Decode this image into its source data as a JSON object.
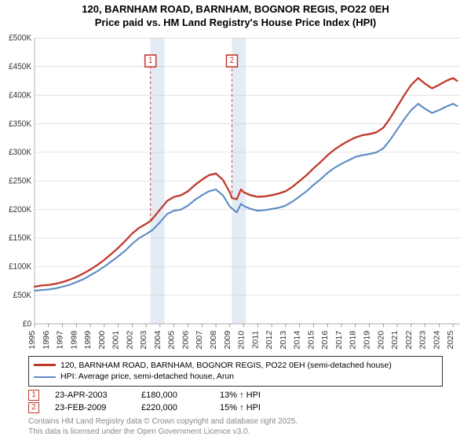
{
  "title": {
    "line1": "120, BARNHAM ROAD, BARNHAM, BOGNOR REGIS, PO22 0EH",
    "line2": "Price paid vs. HM Land Registry's House Price Index (HPI)",
    "fontsize": 13,
    "color": "#000000"
  },
  "chart": {
    "type": "line",
    "background_color": "#ffffff",
    "grid_color": "#cccccc",
    "axis_color": "#333333",
    "x": {
      "label_years": [
        1995,
        1996,
        1997,
        1998,
        1999,
        2000,
        2001,
        2002,
        2003,
        2004,
        2005,
        2006,
        2007,
        2008,
        2009,
        2010,
        2011,
        2012,
        2013,
        2014,
        2015,
        2016,
        2017,
        2018,
        2019,
        2020,
        2021,
        2022,
        2023,
        2024,
        2025
      ],
      "min": 1995,
      "max": 2025.5,
      "tick_fontsize": 10,
      "tick_rotation": -90
    },
    "y": {
      "min": 0,
      "max": 500000,
      "ticks": [
        0,
        50000,
        100000,
        150000,
        200000,
        250000,
        300000,
        350000,
        400000,
        450000,
        500000
      ],
      "tick_labels": [
        "£0",
        "£50K",
        "£100K",
        "£150K",
        "£200K",
        "£250K",
        "£300K",
        "£350K",
        "£400K",
        "£450K",
        "£500K"
      ],
      "tick_fontsize": 10
    },
    "highlight_bands": [
      {
        "x_start": 2003.31,
        "x_end": 2004.31
      },
      {
        "x_start": 2009.15,
        "x_end": 2010.15
      }
    ],
    "series": [
      {
        "name": "property",
        "label": "120, BARNHAM ROAD, BARNHAM, BOGNOR REGIS, PO22 0EH (semi-detached house)",
        "color": "#c0392b",
        "line_width": 2.2,
        "data": [
          [
            1995,
            65000
          ],
          [
            1995.5,
            67000
          ],
          [
            1996,
            68000
          ],
          [
            1996.5,
            70000
          ],
          [
            1997,
            73000
          ],
          [
            1997.5,
            77000
          ],
          [
            1998,
            82000
          ],
          [
            1998.5,
            88000
          ],
          [
            1999,
            95000
          ],
          [
            1999.5,
            103000
          ],
          [
            2000,
            112000
          ],
          [
            2000.5,
            122000
          ],
          [
            2001,
            133000
          ],
          [
            2001.5,
            145000
          ],
          [
            2002,
            158000
          ],
          [
            2002.5,
            168000
          ],
          [
            2003,
            175000
          ],
          [
            2003.31,
            180000
          ],
          [
            2003.5,
            185000
          ],
          [
            2004,
            200000
          ],
          [
            2004.5,
            215000
          ],
          [
            2005,
            222000
          ],
          [
            2005.5,
            225000
          ],
          [
            2006,
            232000
          ],
          [
            2006.5,
            243000
          ],
          [
            2007,
            252000
          ],
          [
            2007.5,
            260000
          ],
          [
            2008,
            263000
          ],
          [
            2008.5,
            252000
          ],
          [
            2009,
            230000
          ],
          [
            2009.15,
            220000
          ],
          [
            2009.5,
            218000
          ],
          [
            2009.8,
            235000
          ],
          [
            2010,
            230000
          ],
          [
            2010.5,
            225000
          ],
          [
            2011,
            222000
          ],
          [
            2011.5,
            223000
          ],
          [
            2012,
            225000
          ],
          [
            2012.5,
            228000
          ],
          [
            2013,
            232000
          ],
          [
            2013.5,
            240000
          ],
          [
            2014,
            250000
          ],
          [
            2014.5,
            260000
          ],
          [
            2015,
            272000
          ],
          [
            2015.5,
            283000
          ],
          [
            2016,
            295000
          ],
          [
            2016.5,
            305000
          ],
          [
            2017,
            313000
          ],
          [
            2017.5,
            320000
          ],
          [
            2018,
            326000
          ],
          [
            2018.5,
            330000
          ],
          [
            2019,
            332000
          ],
          [
            2019.5,
            335000
          ],
          [
            2020,
            343000
          ],
          [
            2020.5,
            360000
          ],
          [
            2021,
            380000
          ],
          [
            2021.5,
            400000
          ],
          [
            2022,
            418000
          ],
          [
            2022.5,
            430000
          ],
          [
            2023,
            420000
          ],
          [
            2023.5,
            412000
          ],
          [
            2024,
            418000
          ],
          [
            2024.5,
            425000
          ],
          [
            2025,
            430000
          ],
          [
            2025.3,
            425000
          ]
        ]
      },
      {
        "name": "hpi",
        "label": "HPI: Average price, semi-detached house, Arun",
        "color": "#5b8bc4",
        "line_width": 2,
        "data": [
          [
            1995,
            58000
          ],
          [
            1995.5,
            59000
          ],
          [
            1996,
            60000
          ],
          [
            1996.5,
            62000
          ],
          [
            1997,
            65000
          ],
          [
            1997.5,
            68000
          ],
          [
            1998,
            73000
          ],
          [
            1998.5,
            78000
          ],
          [
            1999,
            85000
          ],
          [
            1999.5,
            92000
          ],
          [
            2000,
            100000
          ],
          [
            2000.5,
            109000
          ],
          [
            2001,
            118000
          ],
          [
            2001.5,
            128000
          ],
          [
            2002,
            140000
          ],
          [
            2002.5,
            150000
          ],
          [
            2003,
            157000
          ],
          [
            2003.5,
            165000
          ],
          [
            2004,
            178000
          ],
          [
            2004.5,
            192000
          ],
          [
            2005,
            198000
          ],
          [
            2005.5,
            200000
          ],
          [
            2006,
            207000
          ],
          [
            2006.5,
            217000
          ],
          [
            2007,
            225000
          ],
          [
            2007.5,
            232000
          ],
          [
            2008,
            235000
          ],
          [
            2008.5,
            225000
          ],
          [
            2009,
            205000
          ],
          [
            2009.5,
            195000
          ],
          [
            2009.8,
            210000
          ],
          [
            2010,
            206000
          ],
          [
            2010.5,
            201000
          ],
          [
            2011,
            198000
          ],
          [
            2011.5,
            199000
          ],
          [
            2012,
            201000
          ],
          [
            2012.5,
            203000
          ],
          [
            2013,
            207000
          ],
          [
            2013.5,
            214000
          ],
          [
            2014,
            223000
          ],
          [
            2014.5,
            232000
          ],
          [
            2015,
            243000
          ],
          [
            2015.5,
            253000
          ],
          [
            2016,
            264000
          ],
          [
            2016.5,
            273000
          ],
          [
            2017,
            280000
          ],
          [
            2017.5,
            286000
          ],
          [
            2018,
            292000
          ],
          [
            2018.5,
            295000
          ],
          [
            2019,
            297000
          ],
          [
            2019.5,
            300000
          ],
          [
            2020,
            307000
          ],
          [
            2020.5,
            322000
          ],
          [
            2021,
            340000
          ],
          [
            2021.5,
            358000
          ],
          [
            2022,
            374000
          ],
          [
            2022.5,
            385000
          ],
          [
            2023,
            376000
          ],
          [
            2023.5,
            369000
          ],
          [
            2024,
            374000
          ],
          [
            2024.5,
            380000
          ],
          [
            2025,
            385000
          ],
          [
            2025.3,
            381000
          ]
        ]
      }
    ],
    "sale_markers": [
      {
        "num": "1",
        "x": 2003.31,
        "y_box": 460000,
        "dash_to_y": 180000
      },
      {
        "num": "2",
        "x": 2009.15,
        "y_box": 460000,
        "dash_to_y": 220000
      }
    ]
  },
  "legend": {
    "series1_color": "#c0392b",
    "series1_label": "120, BARNHAM ROAD, BARNHAM, BOGNOR REGIS, PO22 0EH (semi-detached house)",
    "series2_color": "#5b8bc4",
    "series2_label": "HPI: Average price, semi-detached house, Arun"
  },
  "sales": [
    {
      "num": "1",
      "date": "23-APR-2003",
      "price": "£180,000",
      "change": "13% ↑ HPI"
    },
    {
      "num": "2",
      "date": "23-FEB-2009",
      "price": "£220,000",
      "change": "15% ↑ HPI"
    }
  ],
  "footer": {
    "line1": "Contains HM Land Registry data © Crown copyright and database right 2025.",
    "line2": "This data is licensed under the Open Government Licence v3.0."
  }
}
